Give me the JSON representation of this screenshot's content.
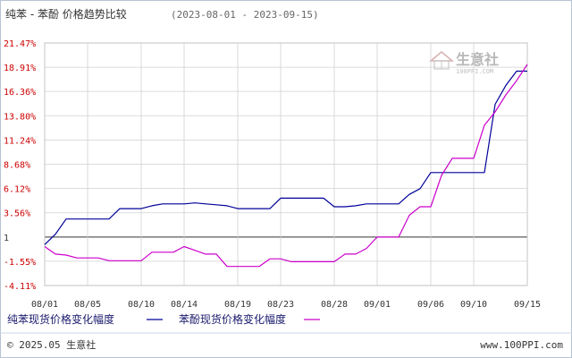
{
  "header": {
    "title": "纯苯 - 苯酚 价格趋势比较",
    "date_range": "(2023-08-01 - 2023-09-15)"
  },
  "footer": {
    "copyright": "© 2025.05 生意社",
    "site": "www.100PPI.com"
  },
  "watermark": {
    "name": "生意社",
    "sub": "100PPI.COM"
  },
  "colors": {
    "series1": "#000099",
    "series2": "#cc00cc",
    "ytick": "#cc0000",
    "grid": "#d0d0d0",
    "zero_line": "#333333"
  },
  "chart_data": {
    "type": "line",
    "title": "纯苯 - 苯酚 价格趋势比较",
    "subtitle": "(2023-08-01 - 2023-09-15)",
    "xlabel": "",
    "ylabel": "",
    "grid": true,
    "legend_position": "bottom-left",
    "ylim": [
      -4.11,
      21.47
    ],
    "yticks": [
      "21.47%",
      "18.91%",
      "16.36%",
      "13.80%",
      "11.24%",
      "8.68%",
      "6.12%",
      "3.56%",
      "1",
      "-1.55%",
      "-4.11%"
    ],
    "ytick_values": [
      21.47,
      18.91,
      16.36,
      13.8,
      11.24,
      8.68,
      6.12,
      3.56,
      1,
      -1.55,
      -4.11
    ],
    "xticks": [
      "08/01",
      "08/05",
      "08/10",
      "08/14",
      "08/19",
      "08/23",
      "08/28",
      "09/01",
      "09/06",
      "09/10",
      "09/15"
    ],
    "x": [
      "08/01",
      "08/02",
      "08/03",
      "08/04",
      "08/05",
      "08/06",
      "08/07",
      "08/08",
      "08/09",
      "08/10",
      "08/11",
      "08/12",
      "08/13",
      "08/14",
      "08/15",
      "08/16",
      "08/17",
      "08/18",
      "08/19",
      "08/20",
      "08/21",
      "08/22",
      "08/23",
      "08/24",
      "08/25",
      "08/26",
      "08/27",
      "08/28",
      "08/29",
      "08/30",
      "08/31",
      "09/01",
      "09/02",
      "09/03",
      "09/04",
      "09/05",
      "09/06",
      "09/07",
      "09/08",
      "09/09",
      "09/10",
      "09/11",
      "09/12",
      "09/13",
      "09/14",
      "09/15"
    ],
    "series": [
      {
        "name": "纯苯现货价格变化幅度",
        "color": "#000099",
        "values": [
          0.2,
          1.3,
          2.9,
          2.9,
          2.9,
          2.9,
          2.9,
          4.0,
          4.0,
          4.0,
          4.3,
          4.5,
          4.5,
          4.5,
          4.6,
          4.5,
          4.4,
          4.3,
          4.0,
          4.0,
          4.0,
          4.0,
          5.1,
          5.1,
          5.1,
          5.1,
          5.1,
          4.2,
          4.2,
          4.3,
          4.5,
          4.5,
          4.5,
          4.5,
          5.5,
          6.1,
          7.8,
          7.8,
          7.8,
          7.8,
          7.8,
          7.8,
          15.0,
          17.0,
          18.5,
          18.5
        ]
      },
      {
        "name": "苯酚现货价格变化幅度",
        "color": "#cc00cc",
        "values": [
          0.0,
          -0.8,
          -0.9,
          -1.2,
          -1.2,
          -1.2,
          -1.5,
          -1.5,
          -1.5,
          -1.5,
          -0.6,
          -0.6,
          -0.6,
          0.0,
          -0.4,
          -0.8,
          -0.8,
          -2.1,
          -2.1,
          -2.1,
          -2.1,
          -1.3,
          -1.3,
          -1.6,
          -1.6,
          -1.6,
          -1.6,
          -1.6,
          -0.8,
          -0.8,
          -0.2,
          1.0,
          1.0,
          1.0,
          3.3,
          4.2,
          4.2,
          7.5,
          9.3,
          9.3,
          9.3,
          12.8,
          14.2,
          16.0,
          17.5,
          19.2
        ]
      }
    ]
  }
}
